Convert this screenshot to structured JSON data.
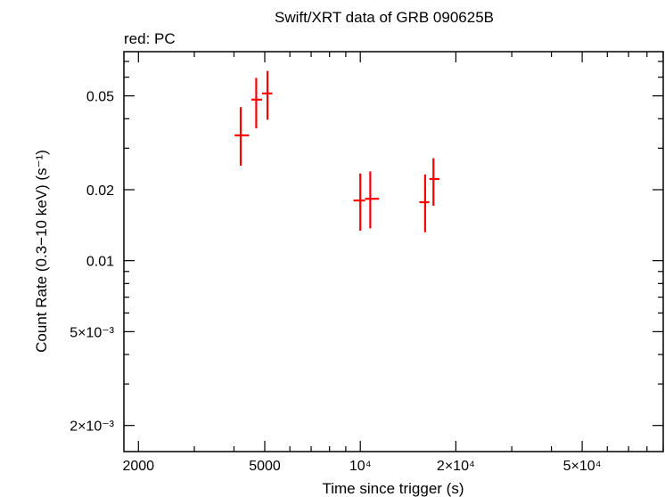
{
  "chart_data": {
    "type": "scatter",
    "title": "Swift/XRT data of GRB 090625B",
    "subtitle": "red: PC",
    "xlabel": "Time since trigger (s)",
    "ylabel": "Count Rate (0.3−10 keV) (s⁻¹)",
    "xscale": "log",
    "yscale": "log",
    "xlim": [
      1800,
      90000
    ],
    "ylim": [
      0.00155,
      0.077
    ],
    "x_ticks": [
      {
        "value": 2000,
        "label": "2000"
      },
      {
        "value": 5000,
        "label": "5000"
      },
      {
        "value": 10000,
        "label": "10⁴"
      },
      {
        "value": 20000,
        "label": "2×10⁴"
      },
      {
        "value": 50000,
        "label": "5×10⁴"
      }
    ],
    "y_ticks": [
      {
        "value": 0.05,
        "label": "0.05"
      },
      {
        "value": 0.02,
        "label": "0.02"
      },
      {
        "value": 0.01,
        "label": "0.01"
      },
      {
        "value": 0.005,
        "label": "5×10⁻³"
      },
      {
        "value": 0.002,
        "label": "2×10⁻³"
      }
    ],
    "grid": false,
    "series": [
      {
        "name": "PC",
        "color": "#ff0000",
        "points": [
          {
            "x": 4200,
            "xerr": [
              4020,
              4460
            ],
            "y": 0.034,
            "yerr": [
              0.0253,
              0.0448
            ]
          },
          {
            "x": 4700,
            "xerr": [
              4540,
              4900
            ],
            "y": 0.0482,
            "yerr": [
              0.0364,
              0.0596
            ]
          },
          {
            "x": 5100,
            "xerr": [
              4900,
              5280
            ],
            "y": 0.0512,
            "yerr": [
              0.0396,
              0.0638
            ]
          },
          {
            "x": 10000,
            "xerr": [
              9520,
              10350
            ],
            "y": 0.018,
            "yerr": [
              0.0134,
              0.0234
            ]
          },
          {
            "x": 10750,
            "xerr": [
              10350,
              11450
            ],
            "y": 0.0183,
            "yerr": [
              0.0137,
              0.0239
            ]
          },
          {
            "x": 16000,
            "xerr": [
              15350,
              16500
            ],
            "y": 0.0177,
            "yerr": [
              0.0132,
              0.0232
            ]
          },
          {
            "x": 17000,
            "xerr": [
              16500,
              17750
            ],
            "y": 0.0222,
            "yerr": [
              0.0171,
              0.0272
            ]
          }
        ]
      }
    ]
  }
}
